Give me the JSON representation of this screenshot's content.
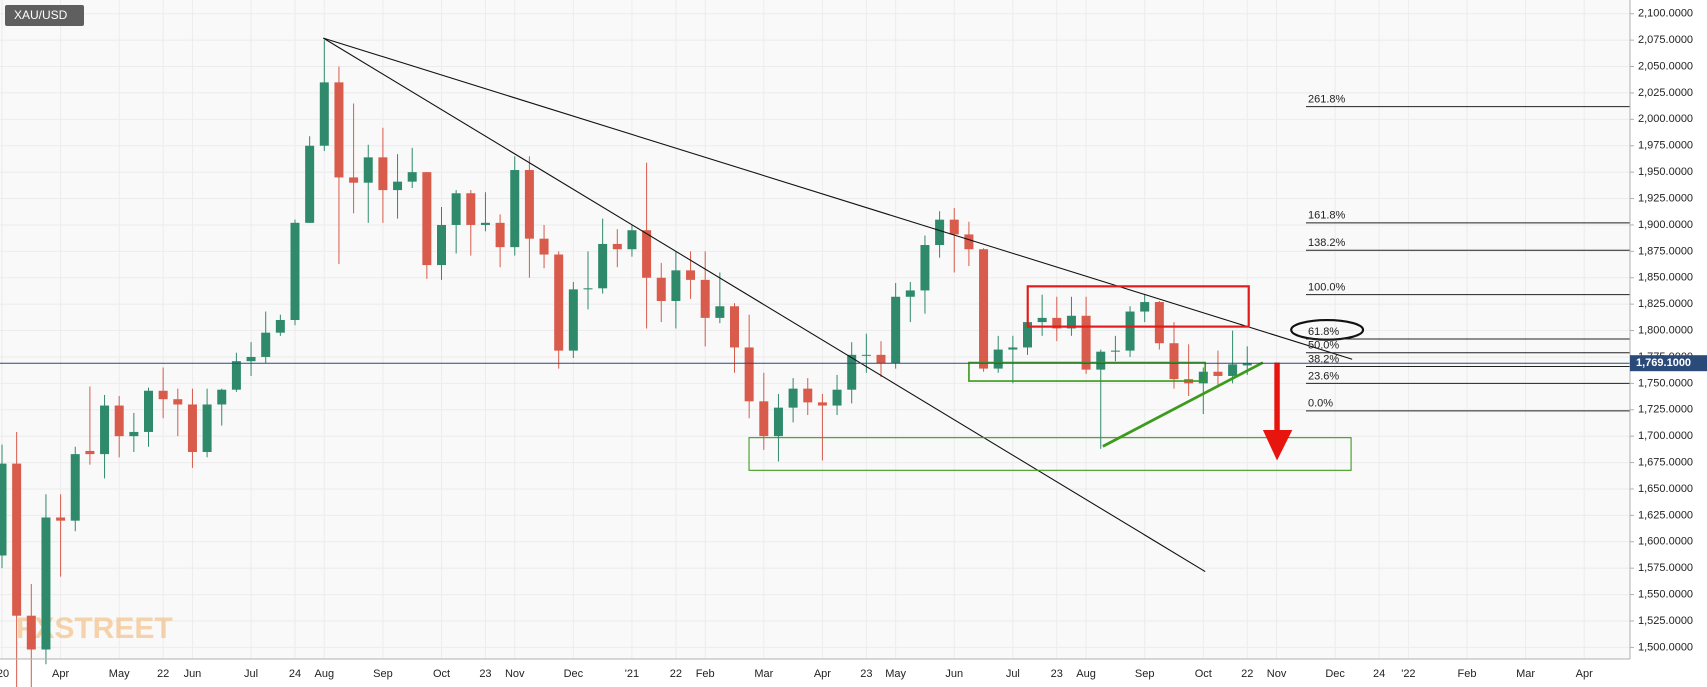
{
  "chart_data": {
    "type": "candlestick",
    "title": "XAU/USD",
    "watermark": "FXSTREET",
    "up_color": "#2f8a6c",
    "down_color": "#d85b4b",
    "grid": true,
    "categories": [
      "'20",
      null,
      null,
      null,
      "Apr",
      null,
      null,
      null,
      "May",
      null,
      null,
      "22",
      null,
      "Jun",
      null,
      null,
      null,
      "Jul",
      null,
      null,
      "24",
      null,
      "Aug",
      null,
      null,
      null,
      "Sep",
      null,
      null,
      null,
      "Oct",
      null,
      null,
      "23",
      null,
      "Nov",
      null,
      null,
      null,
      "Dec",
      null,
      null,
      null,
      "'21",
      null,
      null,
      "22",
      null,
      "Feb",
      null,
      null,
      null,
      "Mar",
      null,
      null,
      null,
      "Apr",
      null,
      null,
      "23",
      null,
      "May",
      null,
      null,
      null,
      "Jun",
      null,
      null,
      null,
      "Jul",
      null,
      null,
      "23",
      null,
      "Aug",
      null,
      null,
      null,
      "Sep",
      null,
      null,
      null,
      "Oct",
      null,
      null,
      "22",
      null,
      "Nov",
      null,
      null,
      null,
      "Dec",
      null,
      null,
      "24",
      null,
      "'22",
      null,
      null,
      null,
      "Feb",
      null,
      null,
      null,
      "Mar",
      null,
      null,
      null,
      "Apr",
      null,
      null,
      null
    ],
    "open": [
      1587,
      1674,
      1530,
      1498,
      1623,
      1620,
      1686,
      1683,
      1729,
      1700,
      1704,
      1743,
      1735,
      1730,
      1685,
      1730,
      1744,
      1771,
      1775,
      1798,
      1810,
      1902,
      1975,
      2035,
      1945,
      1940,
      1964,
      1933,
      1941,
      1950,
      1862,
      1900,
      1930,
      1900,
      1902,
      1879,
      1952,
      1887,
      1872,
      1781,
      1839,
      1840,
      1882,
      1877,
      1895,
      1850,
      1828,
      1857,
      1848,
      1812,
      1823,
      1784,
      1733,
      1700,
      1727,
      1745,
      1732,
      1729,
      1744,
      1777,
      1777,
      1769,
      1832,
      1838,
      1881,
      1905,
      1891,
      1877,
      1764,
      1782,
      1784,
      1808,
      1812,
      1802,
      1814,
      1763,
      1780,
      1781,
      1818,
      1827,
      1788,
      1754,
      1750,
      1761,
      1757,
      1767,
      null,
      null,
      null,
      null,
      null,
      null,
      null,
      null,
      null,
      null,
      null,
      null,
      null,
      null,
      null,
      null,
      null,
      null,
      null,
      null,
      null,
      null,
      null,
      null,
      null,
      null
    ],
    "high": [
      1692,
      1704,
      1560,
      1645,
      1645,
      1690,
      1747,
      1739,
      1738,
      1722,
      1746,
      1765,
      1745,
      1745,
      1745,
      1745,
      1779,
      1789,
      1818,
      1815,
      1905,
      1984,
      2075,
      2050,
      2015,
      1976,
      1992,
      1967,
      1973,
      1950,
      1917,
      1933,
      1933,
      1931,
      1910,
      1965,
      1965,
      1900,
      1875,
      1846,
      1875,
      1906,
      1896,
      1900,
      1959,
      1864,
      1875,
      1875,
      1875,
      1855,
      1826,
      1815,
      1760,
      1740,
      1755,
      1755,
      1740,
      1758,
      1789,
      1797,
      1790,
      1845,
      1846,
      1890,
      1913,
      1916,
      1903,
      1878,
      1795,
      1795,
      1818,
      1834,
      1832,
      1832,
      1832,
      1782,
      1795,
      1823,
      1834,
      1828,
      1808,
      1787,
      1765,
      1781,
      1800,
      1785,
      null,
      null,
      null,
      null,
      null,
      null,
      null,
      null,
      null,
      null,
      null,
      null,
      null,
      null,
      null,
      null,
      null,
      null,
      null,
      null,
      null,
      null,
      null,
      null,
      null,
      null
    ],
    "low": [
      1575,
      1451,
      1451,
      1484,
      1567,
      1610,
      1673,
      1660,
      1680,
      1685,
      1690,
      1717,
      1700,
      1670,
      1680,
      1710,
      1742,
      1757,
      1769,
      1795,
      1805,
      1902,
      1970,
      1863,
      1911,
      1902,
      1902,
      1906,
      1935,
      1849,
      1848,
      1873,
      1871,
      1894,
      1860,
      1871,
      1850,
      1859,
      1764,
      1774,
      1820,
      1835,
      1860,
      1870,
      1802,
      1808,
      1802,
      1830,
      1785,
      1807,
      1760,
      1717,
      1687,
      1676,
      1713,
      1720,
      1677,
      1720,
      1731,
      1760,
      1756,
      1764,
      1808,
      1816,
      1869,
      1855,
      1861,
      1761,
      1760,
      1750,
      1777,
      1795,
      1790,
      1795,
      1759,
      1688,
      1771,
      1775,
      1808,
      1782,
      1745,
      1738,
      1721,
      1746,
      1750,
      1758,
      null,
      null,
      null,
      null,
      null,
      null,
      null,
      null,
      null,
      null,
      null,
      null,
      null,
      null,
      null,
      null,
      null,
      null,
      null,
      null,
      null,
      null,
      null,
      null,
      null,
      null
    ],
    "close": [
      1674,
      1530,
      1498,
      1623,
      1620,
      1683,
      1683,
      1729,
      1700,
      1704,
      1743,
      1735,
      1730,
      1685,
      1730,
      1744,
      1771,
      1775,
      1798,
      1810,
      1902,
      1975,
      2035,
      1945,
      1940,
      1964,
      1933,
      1941,
      1950,
      1862,
      1900,
      1930,
      1900,
      1902,
      1879,
      1952,
      1887,
      1872,
      1781,
      1839,
      1840,
      1882,
      1877,
      1895,
      1850,
      1828,
      1857,
      1848,
      1812,
      1823,
      1784,
      1733,
      1700,
      1727,
      1745,
      1732,
      1729,
      1744,
      1777,
      1777,
      1769,
      1832,
      1838,
      1881,
      1905,
      1891,
      1877,
      1764,
      1782,
      1784,
      1808,
      1812,
      1802,
      1814,
      1763,
      1780,
      1781,
      1818,
      1827,
      1788,
      1754,
      1750,
      1761,
      1757,
      1768,
      1769.1,
      null,
      null,
      null,
      null,
      null,
      null,
      null,
      null,
      null,
      null,
      null,
      null,
      null,
      null,
      null,
      null,
      null,
      null,
      null,
      null,
      null,
      null,
      null,
      null,
      null,
      null
    ],
    "ylim": [
      1489,
      2113
    ],
    "yticks": [
      {
        "value": 1500,
        "label": "1,500.0000"
      },
      {
        "value": 1525,
        "label": "1,525.0000"
      },
      {
        "value": 1550,
        "label": "1,550.0000"
      },
      {
        "value": 1575,
        "label": "1,575.0000"
      },
      {
        "value": 1600,
        "label": "1,600.0000"
      },
      {
        "value": 1625,
        "label": "1,625.0000"
      },
      {
        "value": 1650,
        "label": "1,650.0000"
      },
      {
        "value": 1675,
        "label": "1,675.0000"
      },
      {
        "value": 1700,
        "label": "1,700.0000"
      },
      {
        "value": 1725,
        "label": "1,725.0000"
      },
      {
        "value": 1750,
        "label": "1,750.0000"
      },
      {
        "value": 1775,
        "label": "1,775.0000"
      },
      {
        "value": 1800,
        "label": "1,800.0000"
      },
      {
        "value": 1825,
        "label": "1,825.0000"
      },
      {
        "value": 1850,
        "label": "1,850.0000"
      },
      {
        "value": 1875,
        "label": "1,875.0000"
      },
      {
        "value": 1900,
        "label": "1,900.0000"
      },
      {
        "value": 1925,
        "label": "1,925.0000"
      },
      {
        "value": 1950,
        "label": "1,950.0000"
      },
      {
        "value": 1975,
        "label": "1,975.0000"
      },
      {
        "value": 2000,
        "label": "2,000.0000"
      },
      {
        "value": 2025,
        "label": "2,025.0000"
      },
      {
        "value": 2050,
        "label": "2,050.0000"
      },
      {
        "value": 2075,
        "label": "2,075.0000"
      },
      {
        "value": 2100,
        "label": "2,100.0000"
      }
    ],
    "last_price": {
      "value": 1769.1,
      "label": "1,769.1000",
      "color": "#2a4a7a"
    },
    "fibonacci": [
      {
        "label": "261.8%",
        "value": 2012
      },
      {
        "label": "161.8%",
        "value": 1902
      },
      {
        "label": "138.2%",
        "value": 1876
      },
      {
        "label": "100.0%",
        "value": 1834
      },
      {
        "label": "61.8%",
        "value": 1792
      },
      {
        "label": "50.0%",
        "value": 1779
      },
      {
        "label": "38.2%",
        "value": 1766
      },
      {
        "label": "23.6%",
        "value": 1750
      },
      {
        "label": "0.0%",
        "value": 1724
      }
    ]
  }
}
